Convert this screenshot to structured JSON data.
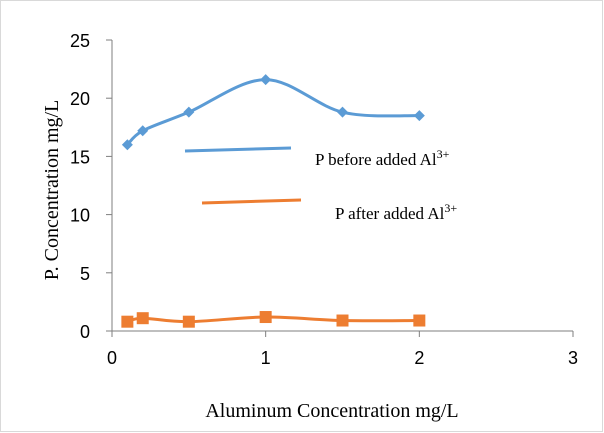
{
  "chart_data": {
    "type": "line",
    "title": "",
    "xlabel": "Aluminum Concentration mg/L",
    "ylabel": "P. Concentration mg/L",
    "xlim": [
      0,
      3
    ],
    "ylim": [
      0,
      25
    ],
    "xticks": [
      0,
      1,
      2,
      3
    ],
    "yticks": [
      0,
      5,
      10,
      15,
      20,
      25
    ],
    "grid": false,
    "legend_position": "center",
    "series": [
      {
        "name": "P before added Al",
        "name_superscript": "3+",
        "color": "#5b9bd5",
        "marker": "diamond",
        "smooth": true,
        "x": [
          0.1,
          0.2,
          0.5,
          1.0,
          1.5,
          2.0
        ],
        "y": [
          16.0,
          17.2,
          18.8,
          21.6,
          18.8,
          18.5
        ]
      },
      {
        "name": "P after added Al",
        "name_superscript": "3+",
        "color": "#ed7d31",
        "marker": "square",
        "smooth": true,
        "x": [
          0.1,
          0.2,
          0.5,
          1.0,
          1.5,
          2.0
        ],
        "y": [
          0.8,
          1.1,
          0.8,
          1.2,
          0.9,
          0.9
        ]
      }
    ]
  }
}
